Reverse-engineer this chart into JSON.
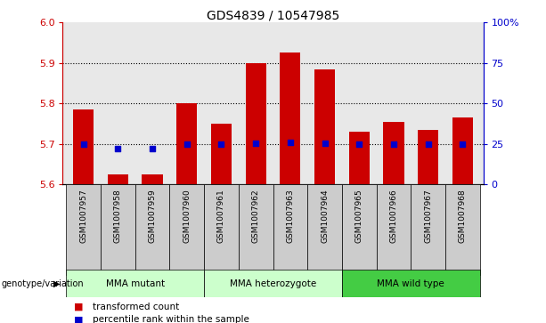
{
  "title": "GDS4839 / 10547985",
  "samples": [
    "GSM1007957",
    "GSM1007958",
    "GSM1007959",
    "GSM1007960",
    "GSM1007961",
    "GSM1007962",
    "GSM1007963",
    "GSM1007964",
    "GSM1007965",
    "GSM1007966",
    "GSM1007967",
    "GSM1007968"
  ],
  "bar_values": [
    5.785,
    5.625,
    5.625,
    5.8,
    5.75,
    5.9,
    5.925,
    5.885,
    5.73,
    5.755,
    5.735,
    5.765
  ],
  "dot_values": [
    5.7,
    5.688,
    5.688,
    5.7,
    5.7,
    5.702,
    5.704,
    5.702,
    5.7,
    5.7,
    5.7,
    5.7
  ],
  "ymin": 5.6,
  "ymax": 6.0,
  "y2min": 0,
  "y2max": 100,
  "yticks": [
    5.6,
    5.7,
    5.8,
    5.9,
    6.0
  ],
  "y2ticks": [
    0,
    25,
    50,
    75,
    100
  ],
  "y2labels": [
    "0",
    "25",
    "50",
    "75",
    "100%"
  ],
  "hlines": [
    5.7,
    5.8,
    5.9
  ],
  "bar_color": "#cc0000",
  "dot_color": "#0000cc",
  "bar_bottom": 5.6,
  "ax_bg": "#e8e8e8",
  "group_labels": [
    "MMA mutant",
    "MMA heterozygote",
    "MMA wild type"
  ],
  "group_ranges": [
    [
      0,
      3
    ],
    [
      4,
      7
    ],
    [
      8,
      11
    ]
  ],
  "group_bg_colors": [
    "#ccffcc",
    "#ccffcc",
    "#44cc44"
  ],
  "legend_labels": [
    "transformed count",
    "percentile rank within the sample"
  ],
  "legend_colors": [
    "#cc0000",
    "#0000cc"
  ]
}
